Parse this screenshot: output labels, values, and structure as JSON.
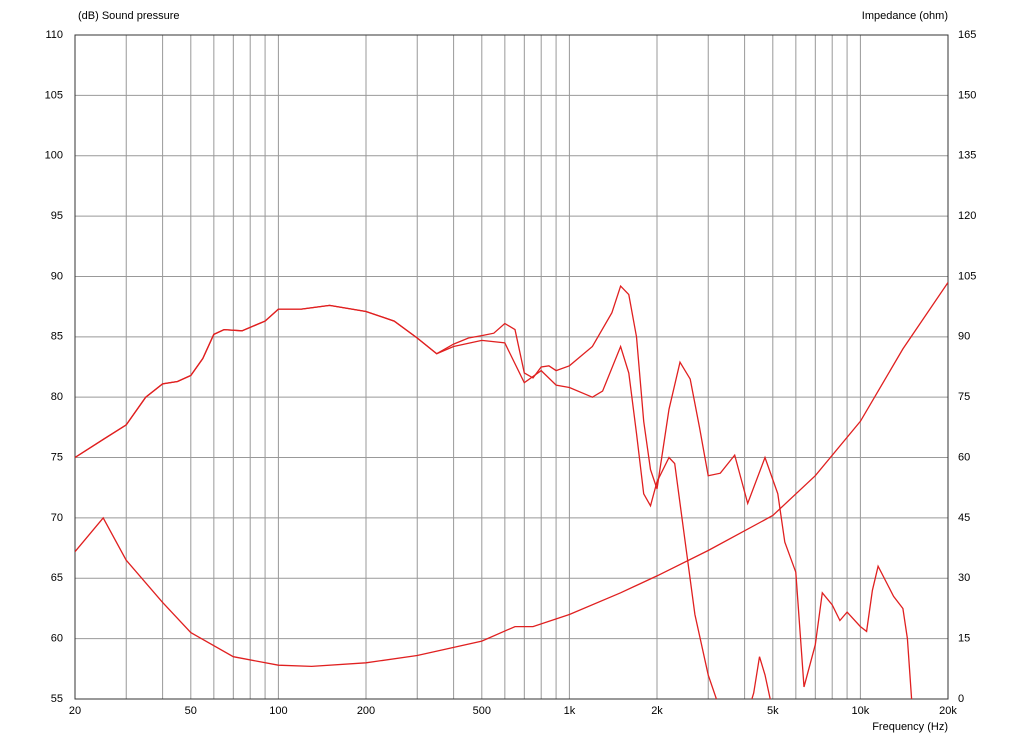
{
  "chart_data": {
    "type": "line",
    "xscale": "log",
    "grid": true,
    "ylabel": "(dB)  Sound pressure",
    "y2label": "Impedance  (ohm)",
    "xlabel": "Frequency  (Hz)",
    "xlim": [
      20,
      20000
    ],
    "xticks": [
      20,
      50,
      100,
      200,
      500,
      {
        "value": 1000,
        "label": "1k"
      },
      {
        "value": 2000,
        "label": "2k"
      },
      {
        "value": 5000,
        "label": "5k"
      },
      {
        "value": 10000,
        "label": "10k"
      },
      {
        "value": 20000,
        "label": "20k"
      }
    ],
    "xminor": [
      30,
      40,
      60,
      70,
      80,
      90,
      300,
      400,
      600,
      700,
      800,
      900,
      3000,
      4000,
      6000,
      7000,
      8000,
      9000
    ],
    "ylim": [
      55,
      110
    ],
    "yticks": [
      55,
      60,
      65,
      70,
      75,
      80,
      85,
      90,
      95,
      100,
      105,
      110
    ],
    "y2lim": [
      0,
      165
    ],
    "y2ticks": [
      0,
      15,
      30,
      45,
      60,
      75,
      90,
      105,
      120,
      135,
      150,
      165
    ],
    "series": [
      {
        "color": "#e02020",
        "x": [
          20,
          25,
          30,
          35,
          40,
          45,
          50,
          55,
          60,
          65,
          75,
          90,
          100,
          120,
          150,
          200,
          250,
          300,
          350,
          400,
          450,
          500,
          550,
          600,
          650,
          700,
          750,
          800,
          850,
          900,
          1000,
          1200,
          1400,
          1500,
          1600,
          1700,
          1800,
          1900,
          2000,
          2200,
          2400,
          2600,
          2800,
          3000,
          3300,
          3700,
          4100,
          4700,
          5200,
          5500,
          6000,
          6400,
          7000,
          7400,
          8000,
          8500,
          9000,
          10000,
          10500,
          11000,
          11500,
          13000,
          14000,
          14500,
          15000
        ],
        "values": [
          75,
          76.5,
          77.7,
          80,
          81.1,
          81.3,
          81.8,
          83.2,
          85.2,
          85.6,
          85.5,
          86.3,
          87.3,
          87.3,
          87.6,
          87.1,
          86.3,
          84.9,
          83.6,
          84.4,
          84.9,
          85.1,
          85.3,
          86.1,
          85.6,
          82,
          81.6,
          82.5,
          82.6,
          82.2,
          82.6,
          84.2,
          87,
          89.2,
          88.5,
          85,
          78,
          74,
          72.4,
          79,
          82.9,
          81.5,
          77.5,
          73.5,
          73.7,
          75.2,
          71.2,
          75,
          72,
          68,
          65.5,
          56,
          59.5,
          63.8,
          62.8,
          61.5,
          62.2,
          61,
          60.6,
          64,
          66,
          63.5,
          62.5,
          60,
          55
        ]
      },
      {
        "color": "#e02020",
        "x": [
          20,
          25,
          30,
          35,
          40,
          45,
          50,
          55,
          60,
          65,
          75,
          90,
          100,
          120,
          150,
          200,
          250,
          300,
          350,
          400,
          500,
          600,
          700,
          800,
          900,
          1000,
          1200,
          1300,
          1500,
          1600,
          1700,
          1800,
          1900,
          2000,
          2200,
          2300,
          2500,
          2700,
          3000,
          3200,
          3300,
          4000,
          4300,
          4500,
          4700,
          5000
        ],
        "values": [
          75,
          76.5,
          77.7,
          80,
          81.1,
          81.3,
          81.8,
          83.2,
          85.2,
          85.6,
          85.5,
          86.3,
          87.3,
          87.3,
          87.6,
          87.1,
          86.3,
          84.9,
          83.6,
          84.2,
          84.7,
          84.5,
          81.2,
          82.2,
          81,
          80.8,
          80,
          80.5,
          84.2,
          82,
          77,
          72,
          71,
          73,
          75,
          74.5,
          68,
          62,
          57,
          55,
          54,
          53,
          55.5,
          58.5,
          57,
          54
        ]
      },
      {
        "color": "#e02020",
        "axis": "y2",
        "x": [
          20,
          25,
          30,
          40,
          50,
          70,
          100,
          130,
          200,
          300,
          500,
          650,
          750,
          1000,
          1500,
          2000,
          3000,
          5000,
          7000,
          10000,
          14000,
          20000
        ],
        "values": [
          36.6,
          45,
          34.5,
          24,
          16.5,
          10.5,
          8.4,
          8.1,
          9,
          10.8,
          14.4,
          18,
          18,
          21,
          26.4,
          30.6,
          36.9,
          45.6,
          55.5,
          69,
          87,
          103.5
        ]
      }
    ]
  }
}
